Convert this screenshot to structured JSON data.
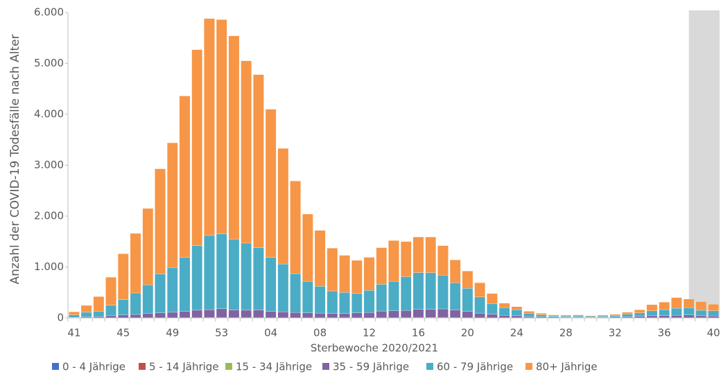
{
  "chart_data": {
    "type": "stacked-bar",
    "y_label": "Anzahl der COVID-19 Todesfälle nach Alter",
    "x_label": "Sterbewoche 2020/2021",
    "categories": [
      "41",
      null,
      null,
      null,
      "45",
      null,
      null,
      null,
      "49",
      null,
      null,
      null,
      "53",
      null,
      null,
      null,
      "04",
      null,
      null,
      null,
      "08",
      null,
      null,
      null,
      "12",
      null,
      null,
      null,
      "16",
      null,
      null,
      null,
      "20",
      null,
      null,
      null,
      "24",
      null,
      null,
      null,
      "28",
      null,
      null,
      null,
      "32",
      null,
      null,
      null,
      "36",
      null,
      null,
      null,
      "40"
    ],
    "ylim": [
      0,
      6000
    ],
    "yticks": [
      0,
      {
        "value": 1000,
        "label": "1.000"
      },
      {
        "value": 2000,
        "label": "2.000"
      },
      {
        "value": 3000,
        "label": "3.000"
      },
      {
        "value": 4000,
        "label": "4.000"
      },
      {
        "value": 5000,
        "label": "5.000"
      },
      {
        "value": 6000,
        "label": "6.000"
      }
    ],
    "grid": false,
    "legend": "bottom",
    "series": [
      {
        "name": "0 - 4 Jährige",
        "color": "#4472c4",
        "values": [
          0,
          0,
          0,
          0,
          0,
          0,
          0,
          0,
          0,
          0,
          0,
          0,
          0,
          0,
          0,
          0,
          0,
          0,
          0,
          0,
          0,
          0,
          0,
          0,
          0,
          0,
          0,
          0,
          0,
          0,
          0,
          0,
          0,
          0,
          0,
          0,
          0,
          0,
          0,
          0,
          0,
          0,
          0,
          0,
          0,
          0,
          0,
          0,
          0,
          0,
          0,
          0,
          0
        ]
      },
      {
        "name": "5 - 14 Jährige",
        "color": "#c0504d",
        "values": [
          0,
          0,
          0,
          0,
          0,
          0,
          0,
          0,
          0,
          0,
          0,
          0,
          0,
          0,
          0,
          0,
          0,
          0,
          0,
          0,
          0,
          0,
          0,
          0,
          0,
          0,
          0,
          0,
          0,
          0,
          0,
          0,
          0,
          0,
          0,
          0,
          0,
          0,
          0,
          0,
          0,
          0,
          0,
          0,
          0,
          0,
          0,
          0,
          0,
          0,
          0,
          0,
          0
        ]
      },
      {
        "name": "15 - 34 Jährige",
        "color": "#9bbb59",
        "values": [
          1,
          1,
          1,
          2,
          3,
          3,
          4,
          4,
          5,
          5,
          6,
          7,
          7,
          6,
          6,
          6,
          5,
          5,
          4,
          4,
          4,
          3,
          3,
          3,
          4,
          5,
          5,
          6,
          7,
          7,
          7,
          6,
          5,
          4,
          3,
          2,
          2,
          1,
          1,
          1,
          1,
          1,
          1,
          1,
          1,
          1,
          2,
          2,
          2,
          3,
          3,
          2,
          2
        ]
      },
      {
        "name": "35 - 59 Jährige",
        "color": "#8064a2",
        "values": [
          10,
          20,
          25,
          40,
          55,
          65,
          80,
          95,
          105,
          120,
          145,
          155,
          175,
          150,
          145,
          150,
          120,
          115,
          100,
          95,
          90,
          85,
          85,
          95,
          100,
          130,
          135,
          140,
          160,
          160,
          170,
          150,
          120,
          90,
          70,
          50,
          40,
          25,
          20,
          15,
          12,
          12,
          10,
          12,
          15,
          20,
          30,
          40,
          45,
          50,
          55,
          40,
          35
        ]
      },
      {
        "name": "60 - 79 Jährige",
        "color": "#4bacc6",
        "values": [
          49,
          89,
          104,
          208,
          302,
          422,
          566,
          761,
          880,
          1065,
          1269,
          1458,
          1468,
          1394,
          1319,
          1224,
          1065,
          940,
          766,
          621,
          526,
          442,
          412,
          382,
          436,
          525,
          580,
          664,
          723,
          723,
          663,
          534,
          455,
          316,
          207,
          148,
          118,
          64,
          39,
          24,
          22,
          27,
          19,
          22,
          29,
          49,
          68,
          98,
          113,
          137,
          142,
          108,
          103
        ]
      },
      {
        "name": "80+ Jährige",
        "color": "#f79646",
        "values": [
          60,
          135,
          290,
          550,
          900,
          1170,
          1500,
          2070,
          2450,
          3170,
          3850,
          4260,
          4210,
          3990,
          3580,
          3400,
          2910,
          2270,
          1820,
          1320,
          1100,
          840,
          730,
          650,
          650,
          720,
          800,
          690,
          700,
          700,
          580,
          450,
          340,
          280,
          200,
          90,
          60,
          40,
          30,
          20,
          20,
          20,
          15,
          20,
          25,
          40,
          60,
          120,
          150,
          210,
          170,
          170,
          130
        ]
      }
    ]
  }
}
